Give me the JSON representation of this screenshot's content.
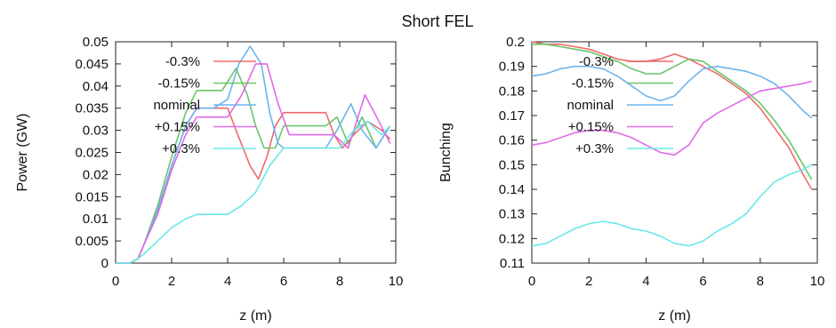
{
  "title": "Short FEL",
  "legend_labels": [
    "-0.3%",
    "-0.15%",
    "nominal",
    "+0.15%",
    "+0.3%"
  ],
  "colors": {
    "-0.3%": "#ee6a6a",
    "-0.15%": "#6ac46a",
    "nominal": "#6ab4ee",
    "+0.15%": "#e06ae8",
    "+0.3%": "#6ae8e8"
  },
  "chart_data": [
    {
      "type": "line",
      "xlabel": "z (m)",
      "ylabel": "Power (GW)",
      "xlim": [
        0,
        10
      ],
      "ylim": [
        0,
        0.05
      ],
      "xticks": [
        "0",
        "2",
        "4",
        "6",
        "8",
        "10"
      ],
      "yticks": [
        "0",
        "0.005",
        "0.01",
        "0.015",
        "0.02",
        "0.025",
        "0.03",
        "0.035",
        "0.04",
        "0.045",
        "0.05"
      ],
      "legend_position": "top-left",
      "series": [
        {
          "name": "-0.3%",
          "x": [
            0,
            0.5,
            0.8,
            1,
            1.5,
            2,
            2.5,
            2.9,
            3.1,
            3.5,
            4,
            4.3,
            4.8,
            5.1,
            5.4,
            5.7,
            6,
            6.5,
            7,
            7.5,
            7.8,
            8.1,
            8.5,
            9,
            9.5,
            9.8
          ],
          "y": [
            0,
            0,
            0.001,
            0.004,
            0.012,
            0.022,
            0.031,
            0.035,
            0.035,
            0.035,
            0.035,
            0.03,
            0.022,
            0.019,
            0.024,
            0.031,
            0.034,
            0.034,
            0.034,
            0.034,
            0.029,
            0.026,
            0.029,
            0.032,
            0.03,
            0.028
          ]
        },
        {
          "name": "-0.15%",
          "x": [
            0,
            0.5,
            0.8,
            1,
            1.5,
            2,
            2.5,
            2.9,
            3.1,
            3.5,
            3.8,
            4.3,
            4.7,
            5,
            5.3,
            5.7,
            6,
            6.5,
            7,
            7.5,
            7.9,
            8.3,
            8.8,
            9.3,
            9.8
          ],
          "y": [
            0,
            0,
            0.001,
            0.004,
            0.013,
            0.024,
            0.034,
            0.039,
            0.039,
            0.039,
            0.039,
            0.044,
            0.038,
            0.031,
            0.026,
            0.026,
            0.031,
            0.031,
            0.031,
            0.031,
            0.033,
            0.027,
            0.033,
            0.026,
            0.031
          ]
        },
        {
          "name": "nominal",
          "x": [
            0,
            0.5,
            0.8,
            1,
            1.5,
            2,
            2.5,
            2.9,
            3.1,
            3.5,
            4,
            4.4,
            4.8,
            5.2,
            5.5,
            5.8,
            6,
            6.5,
            7,
            7.5,
            7.9,
            8.4,
            8.8,
            9.3,
            9.8
          ],
          "y": [
            0,
            0,
            0.001,
            0.004,
            0.012,
            0.022,
            0.031,
            0.035,
            0.035,
            0.035,
            0.037,
            0.045,
            0.049,
            0.045,
            0.034,
            0.027,
            0.026,
            0.026,
            0.026,
            0.026,
            0.03,
            0.036,
            0.03,
            0.026,
            0.031
          ]
        },
        {
          "name": "+0.15%",
          "x": [
            0,
            0.5,
            0.8,
            1,
            1.5,
            2,
            2.5,
            2.9,
            3.1,
            3.5,
            4,
            4.5,
            5,
            5.4,
            5.8,
            6.2,
            6.5,
            7,
            7.5,
            7.8,
            8.3,
            8.9,
            9.4,
            9.8
          ],
          "y": [
            0,
            0,
            0.001,
            0.004,
            0.011,
            0.021,
            0.029,
            0.033,
            0.033,
            0.033,
            0.033,
            0.038,
            0.045,
            0.045,
            0.036,
            0.029,
            0.029,
            0.029,
            0.029,
            0.029,
            0.026,
            0.038,
            0.032,
            0.027
          ]
        },
        {
          "name": "+0.3%",
          "x": [
            0,
            0.5,
            0.8,
            1,
            1.5,
            2,
            2.5,
            2.9,
            3.1,
            3.5,
            4,
            4.5,
            5,
            5.5,
            6,
            6.5,
            7,
            7.5,
            8,
            8.5,
            9,
            9.5,
            9.8
          ],
          "y": [
            0,
            0,
            0.001,
            0.002,
            0.005,
            0.008,
            0.01,
            0.011,
            0.011,
            0.011,
            0.011,
            0.013,
            0.016,
            0.022,
            0.026,
            0.026,
            0.026,
            0.026,
            0.026,
            0.03,
            0.032,
            0.029,
            0.031
          ]
        }
      ]
    },
    {
      "type": "line",
      "xlabel": "z (m)",
      "ylabel": "Bunching",
      "xlim": [
        0,
        10
      ],
      "ylim": [
        0.11,
        0.2
      ],
      "xticks": [
        "0",
        "2",
        "4",
        "6",
        "8",
        "10"
      ],
      "yticks": [
        "0.11",
        "0.12",
        "0.13",
        "0.14",
        "0.15",
        "0.16",
        "0.17",
        "0.18",
        "0.19",
        "0.2"
      ],
      "legend_position": "top-left",
      "series": [
        {
          "name": "-0.3%",
          "x": [
            0,
            0.5,
            1,
            1.5,
            2,
            2.5,
            3,
            3.5,
            4,
            4.5,
            5,
            5.5,
            6,
            6.5,
            7,
            7.5,
            8,
            8.5,
            9,
            9.5,
            9.8
          ],
          "y": [
            0.2,
            0.199,
            0.199,
            0.198,
            0.197,
            0.195,
            0.193,
            0.192,
            0.192,
            0.193,
            0.195,
            0.193,
            0.19,
            0.187,
            0.183,
            0.179,
            0.173,
            0.165,
            0.157,
            0.146,
            0.14
          ]
        },
        {
          "name": "-0.15%",
          "x": [
            0,
            0.5,
            1,
            1.5,
            2,
            2.5,
            3,
            3.5,
            4,
            4.5,
            5,
            5.5,
            6,
            6.5,
            7,
            7.5,
            8,
            8.5,
            9,
            9.5,
            9.8
          ],
          "y": [
            0.199,
            0.199,
            0.198,
            0.197,
            0.196,
            0.194,
            0.192,
            0.189,
            0.187,
            0.187,
            0.19,
            0.193,
            0.192,
            0.188,
            0.184,
            0.18,
            0.175,
            0.168,
            0.16,
            0.15,
            0.144
          ]
        },
        {
          "name": "nominal",
          "x": [
            0,
            0.5,
            1,
            1.5,
            2,
            2.5,
            3,
            3.5,
            4,
            4.5,
            5,
            5.5,
            6,
            6.5,
            7,
            7.5,
            8,
            8.5,
            9,
            9.5,
            9.8
          ],
          "y": [
            0.186,
            0.187,
            0.189,
            0.19,
            0.19,
            0.189,
            0.186,
            0.182,
            0.178,
            0.176,
            0.178,
            0.184,
            0.189,
            0.19,
            0.189,
            0.188,
            0.186,
            0.183,
            0.178,
            0.172,
            0.169
          ]
        },
        {
          "name": "+0.15%",
          "x": [
            0,
            0.5,
            1,
            1.5,
            2,
            2.5,
            3,
            3.5,
            4,
            4.5,
            5,
            5.5,
            6,
            6.5,
            7,
            7.5,
            8,
            8.5,
            9,
            9.5,
            9.8
          ],
          "y": [
            0.158,
            0.159,
            0.161,
            0.163,
            0.164,
            0.164,
            0.163,
            0.161,
            0.158,
            0.155,
            0.154,
            0.158,
            0.167,
            0.171,
            0.174,
            0.177,
            0.18,
            0.181,
            0.182,
            0.183,
            0.184
          ]
        },
        {
          "name": "+0.3%",
          "x": [
            0,
            0.5,
            1,
            1.5,
            2,
            2.5,
            3,
            3.5,
            4,
            4.5,
            5,
            5.5,
            6,
            6.5,
            7,
            7.5,
            8,
            8.5,
            9,
            9.5,
            9.8
          ],
          "y": [
            0.117,
            0.118,
            0.121,
            0.124,
            0.126,
            0.127,
            0.126,
            0.124,
            0.123,
            0.121,
            0.118,
            0.117,
            0.119,
            0.123,
            0.126,
            0.13,
            0.137,
            0.143,
            0.146,
            0.148,
            0.15
          ]
        }
      ]
    }
  ]
}
